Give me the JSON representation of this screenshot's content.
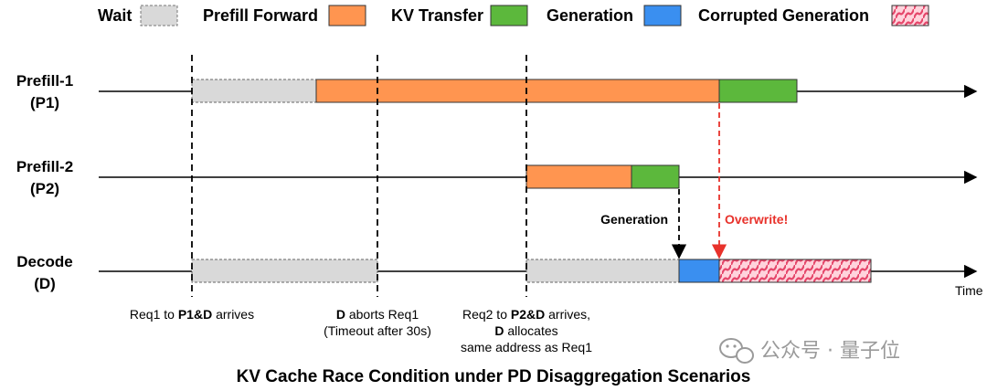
{
  "legend": [
    {
      "label": "Wait",
      "key": "wait"
    },
    {
      "label": "Prefill Forward",
      "key": "prefill"
    },
    {
      "label": "KV Transfer",
      "key": "kv"
    },
    {
      "label": "Generation",
      "key": "gen"
    },
    {
      "label": "Corrupted Generation",
      "key": "corrupt"
    }
  ],
  "colors": {
    "wait": "#d9d9d9",
    "prefill": "#ff9550",
    "kv": "#5cb83c",
    "gen": "#3a8ff0",
    "corrupt_bg": "#ffd3dc",
    "corrupt_hatch": "#e5466a",
    "overwrite": "#e8322b"
  },
  "lanes": {
    "p1_line1": "Prefill-1",
    "p1_line2": "(P1)",
    "p2_line1": "Prefill-2",
    "p2_line2": "(P2)",
    "d_line1": "Decode",
    "d_line2": "(D)"
  },
  "axis_label": "Time",
  "arrows": {
    "generation": "Generation",
    "overwrite": "Overwrite!"
  },
  "events": {
    "e1_pre": "Req1 to ",
    "e1_bold": "P1&D",
    "e1_post": " arrives",
    "e2_bold": "D",
    "e2_post": " aborts Req1",
    "e2_line2": "(Timeout after 30s)",
    "e3_pre": "Req2 to ",
    "e3_bold": "P2&D",
    "e3_post": " arrives,",
    "e3_line2_bold": "D",
    "e3_line2_post": " allocates",
    "e3_line3": "same address as Req1"
  },
  "watermark": "公众号 · 量子位",
  "caption": "KV Cache Race Condition under PD Disaggregation Scenarios"
}
